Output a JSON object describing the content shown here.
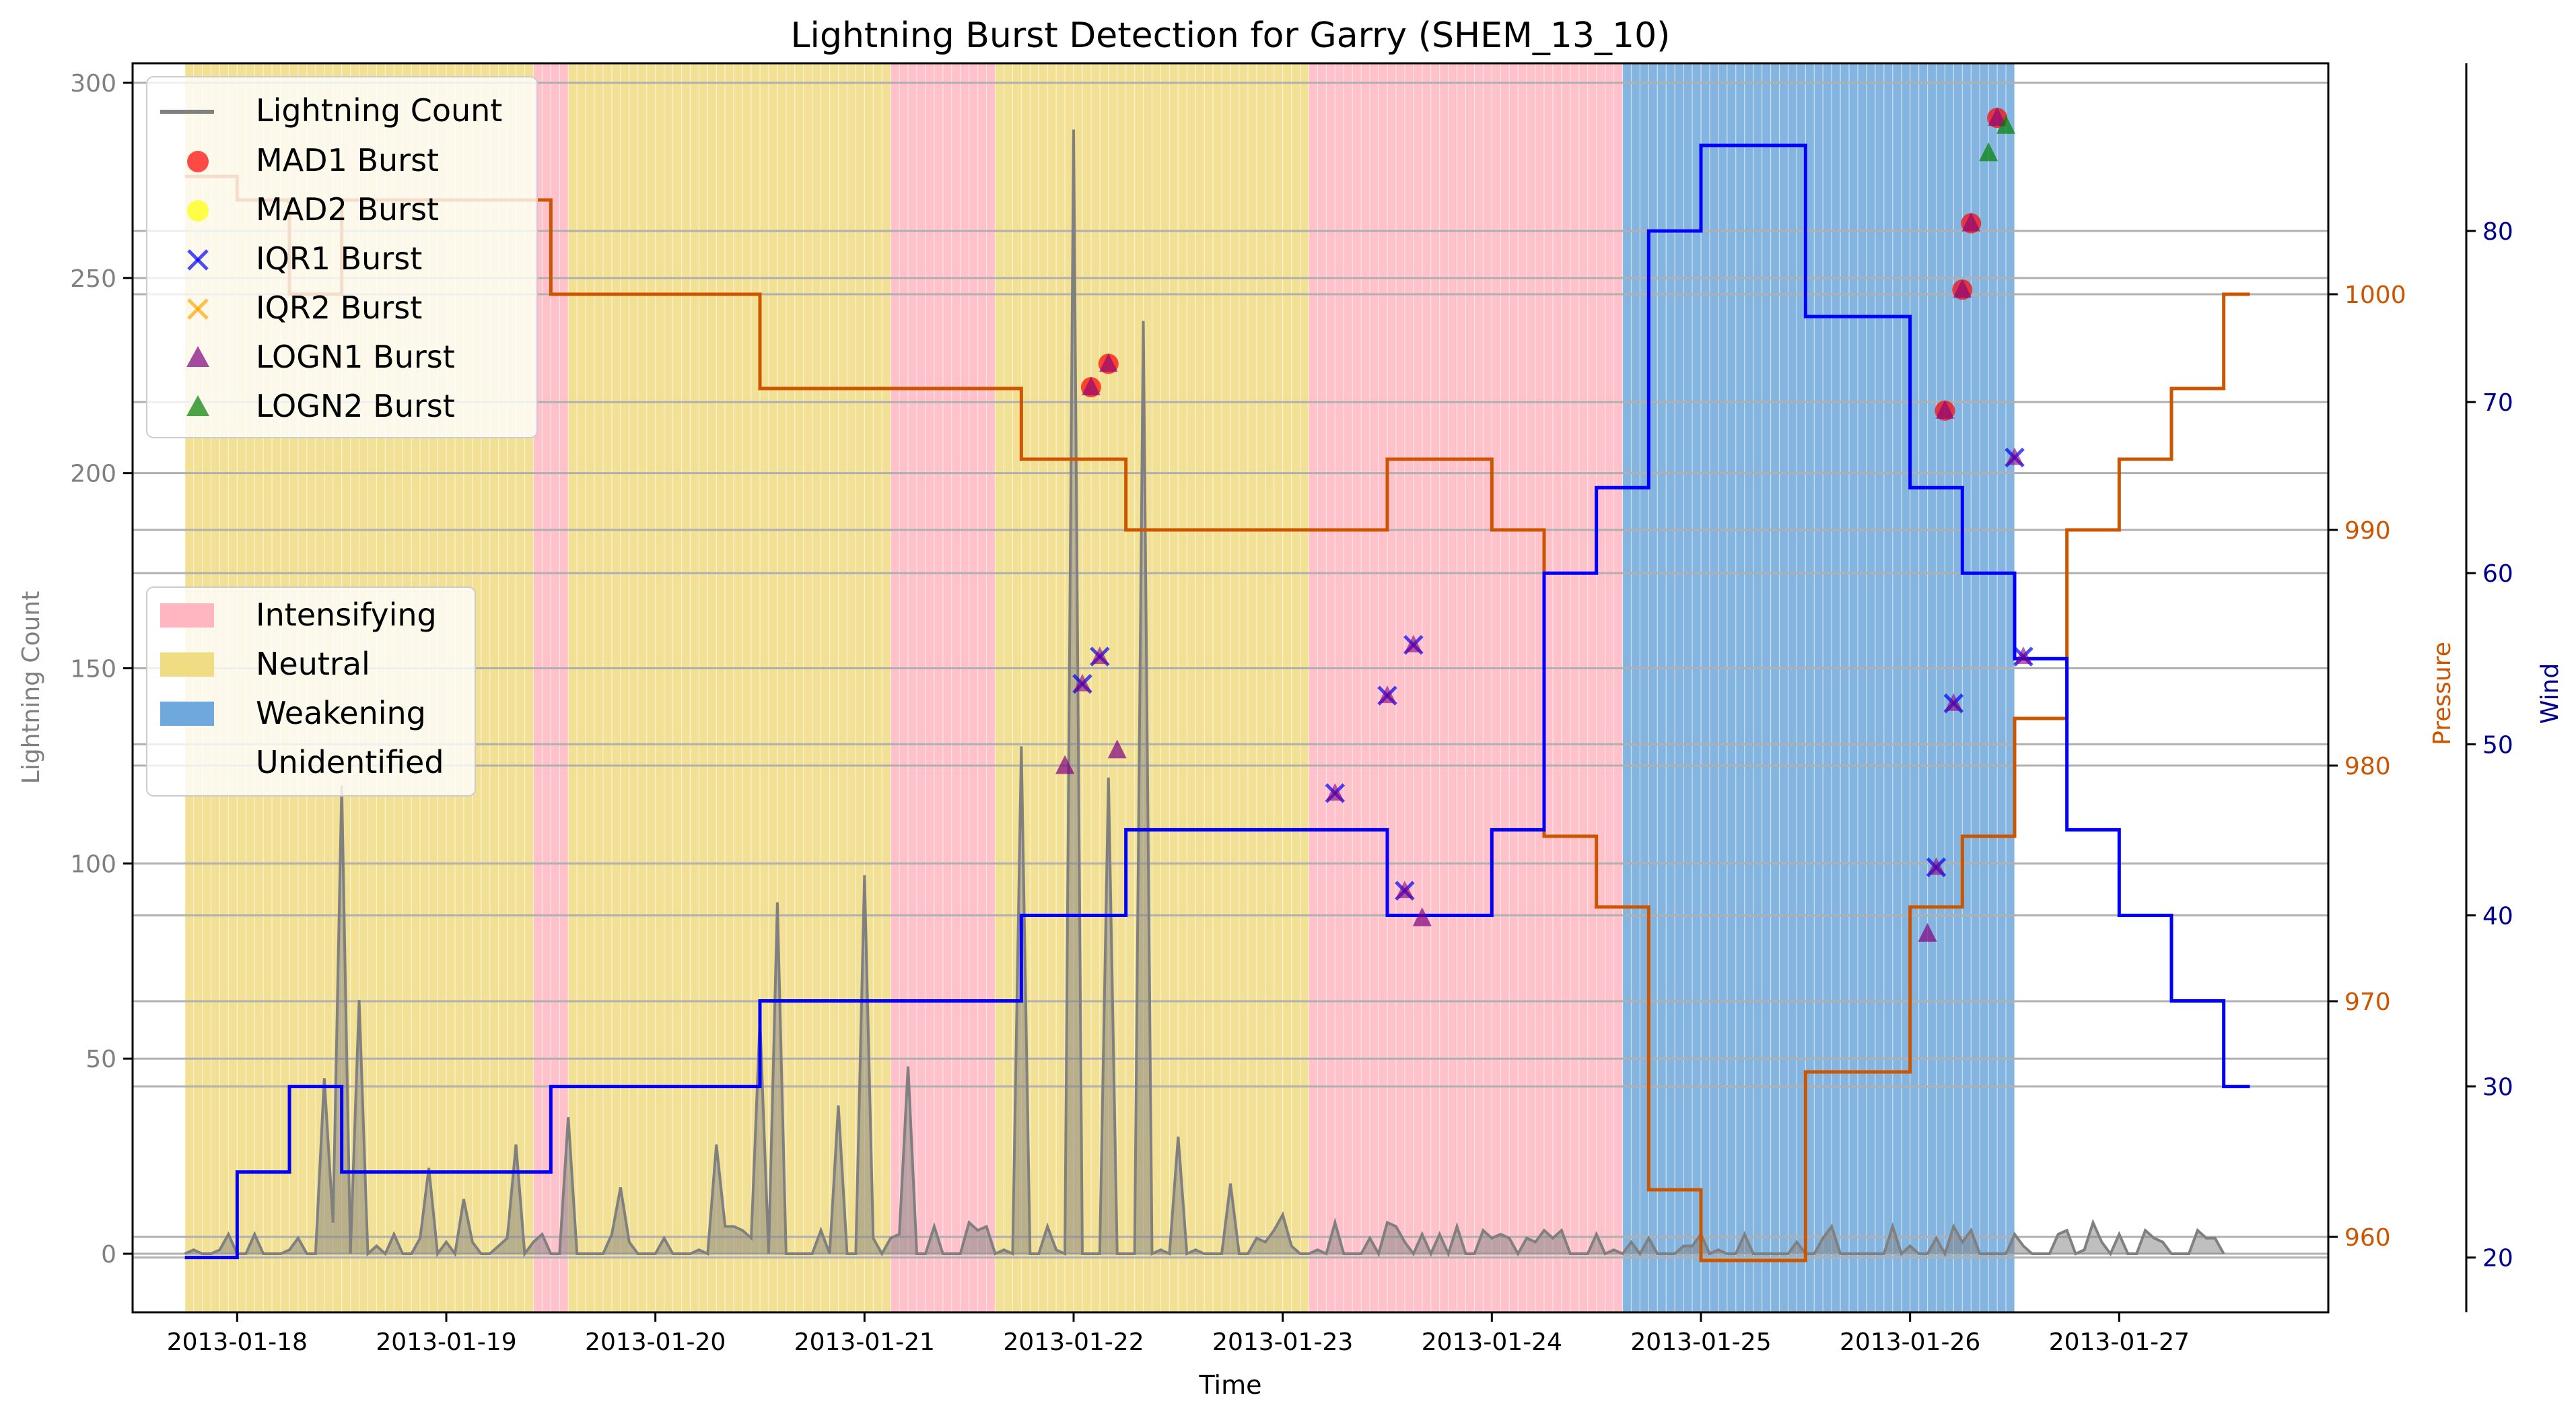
{
  "chart_data": {
    "type": "line",
    "title": "Lightning Burst Detection for Garry (SHEM_13_10)",
    "xlabel": "Time",
    "ylabel": "Lightning Count",
    "ylabel_right1": "Pressure",
    "ylabel_right2": "Wind",
    "xlim": [
      "2013-01-17T12:00",
      "2013-01-28T00:00"
    ],
    "ylim": [
      -15,
      305
    ],
    "ylim_pressure": [
      956.8,
      1009.8
    ],
    "ylim_wind": [
      16.8,
      89.8
    ],
    "x_ticks": [
      "2013-01-18",
      "2013-01-19",
      "2013-01-20",
      "2013-01-21",
      "2013-01-22",
      "2013-01-23",
      "2013-01-24",
      "2013-01-25",
      "2013-01-26",
      "2013-01-27"
    ],
    "y_ticks": [
      0,
      50,
      100,
      150,
      200,
      250,
      300
    ],
    "pressure_ticks": [
      960,
      970,
      980,
      990,
      1000
    ],
    "wind_ticks": [
      20,
      30,
      40,
      50,
      60,
      70,
      80
    ],
    "colors": {
      "lightning": "#808080",
      "pressure": "#cc5500",
      "wind": "#0000ff",
      "intensifying": "#ffb6c1",
      "neutral": "#f0dc82",
      "weakening": "#6fa8dc",
      "grid": "#b0b0b0"
    },
    "legend_top": {
      "position": "top-left",
      "entries": [
        "Lightning Count",
        "MAD1 Burst",
        "MAD2 Burst",
        "IQR1 Burst",
        "IQR2 Burst",
        "LOGN1 Burst",
        "LOGN2 Burst"
      ]
    },
    "legend_mid": {
      "position": "center-left",
      "entries": [
        "Intensifying",
        "Neutral",
        "Weakening",
        "Unidentified"
      ]
    },
    "phases": [
      {
        "start": "2013-01-17T18:00",
        "end": "2013-01-19T10:00",
        "phase": "Neutral"
      },
      {
        "start": "2013-01-19T10:00",
        "end": "2013-01-19T14:00",
        "phase": "Intensifying"
      },
      {
        "start": "2013-01-19T14:00",
        "end": "2013-01-21T03:00",
        "phase": "Neutral"
      },
      {
        "start": "2013-01-21T03:00",
        "end": "2013-01-21T15:00",
        "phase": "Intensifying"
      },
      {
        "start": "2013-01-21T15:00",
        "end": "2013-01-23T03:00",
        "phase": "Neutral"
      },
      {
        "start": "2013-01-23T03:00",
        "end": "2013-01-24T15:00",
        "phase": "Intensifying"
      },
      {
        "start": "2013-01-24T15:00",
        "end": "2013-01-26T12:00",
        "phase": "Weakening"
      }
    ],
    "pressure": [
      {
        "t": "2013-01-17T18:00",
        "v": 1005
      },
      {
        "t": "2013-01-18T00:00",
        "v": 1004
      },
      {
        "t": "2013-01-18T06:00",
        "v": 1000
      },
      {
        "t": "2013-01-18T12:00",
        "v": 1004
      },
      {
        "t": "2013-01-19T12:00",
        "v": 1000
      },
      {
        "t": "2013-01-20T12:00",
        "v": 996
      },
      {
        "t": "2013-01-21T18:00",
        "v": 993
      },
      {
        "t": "2013-01-22T06:00",
        "v": 990
      },
      {
        "t": "2013-01-23T12:00",
        "v": 993
      },
      {
        "t": "2013-01-24T00:00",
        "v": 990
      },
      {
        "t": "2013-01-24T06:00",
        "v": 977
      },
      {
        "t": "2013-01-24T12:00",
        "v": 974
      },
      {
        "t": "2013-01-24T18:00",
        "v": 962
      },
      {
        "t": "2013-01-25T00:00",
        "v": 959
      },
      {
        "t": "2013-01-25T12:00",
        "v": 967
      },
      {
        "t": "2013-01-26T00:00",
        "v": 974
      },
      {
        "t": "2013-01-26T06:00",
        "v": 977
      },
      {
        "t": "2013-01-26T12:00",
        "v": 982
      },
      {
        "t": "2013-01-26T18:00",
        "v": 990
      },
      {
        "t": "2013-01-27T00:00",
        "v": 993
      },
      {
        "t": "2013-01-27T06:00",
        "v": 996
      },
      {
        "t": "2013-01-27T12:00",
        "v": 1000
      }
    ],
    "wind": [
      {
        "t": "2013-01-17T18:00",
        "v": 20
      },
      {
        "t": "2013-01-18T00:00",
        "v": 25
      },
      {
        "t": "2013-01-18T06:00",
        "v": 30
      },
      {
        "t": "2013-01-18T12:00",
        "v": 25
      },
      {
        "t": "2013-01-19T12:00",
        "v": 30
      },
      {
        "t": "2013-01-20T12:00",
        "v": 35
      },
      {
        "t": "2013-01-21T18:00",
        "v": 40
      },
      {
        "t": "2013-01-22T06:00",
        "v": 45
      },
      {
        "t": "2013-01-23T12:00",
        "v": 40
      },
      {
        "t": "2013-01-24T00:00",
        "v": 45
      },
      {
        "t": "2013-01-24T06:00",
        "v": 60
      },
      {
        "t": "2013-01-24T12:00",
        "v": 65
      },
      {
        "t": "2013-01-24T18:00",
        "v": 80
      },
      {
        "t": "2013-01-25T00:00",
        "v": 85
      },
      {
        "t": "2013-01-25T12:00",
        "v": 75
      },
      {
        "t": "2013-01-26T00:00",
        "v": 65
      },
      {
        "t": "2013-01-26T06:00",
        "v": 60
      },
      {
        "t": "2013-01-26T12:00",
        "v": 55
      },
      {
        "t": "2013-01-26T18:00",
        "v": 45
      },
      {
        "t": "2013-01-27T00:00",
        "v": 40
      },
      {
        "t": "2013-01-27T06:00",
        "v": 35
      },
      {
        "t": "2013-01-27T12:00",
        "v": 30
      }
    ],
    "lightning_spikes": [
      {
        "t": "2013-01-18T10:00",
        "v": 45
      },
      {
        "t": "2013-01-18T12:00",
        "v": 120
      },
      {
        "t": "2013-01-18T14:00",
        "v": 65
      },
      {
        "t": "2013-01-18T22:00",
        "v": 22
      },
      {
        "t": "2013-01-19T02:00",
        "v": 14
      },
      {
        "t": "2013-01-19T08:00",
        "v": 28
      },
      {
        "t": "2013-01-19T14:00",
        "v": 35
      },
      {
        "t": "2013-01-19T20:00",
        "v": 17
      },
      {
        "t": "2013-01-20T07:00",
        "v": 28
      },
      {
        "t": "2013-01-20T12:00",
        "v": 60
      },
      {
        "t": "2013-01-20T14:00",
        "v": 90
      },
      {
        "t": "2013-01-20T21:00",
        "v": 38
      },
      {
        "t": "2013-01-21T00:00",
        "v": 97
      },
      {
        "t": "2013-01-21T05:00",
        "v": 48
      },
      {
        "t": "2013-01-21T12:00",
        "v": 8
      },
      {
        "t": "2013-01-21T18:00",
        "v": 130
      },
      {
        "t": "2013-01-22T00:00",
        "v": 288
      },
      {
        "t": "2013-01-22T04:00",
        "v": 122
      },
      {
        "t": "2013-01-22T08:00",
        "v": 239
      },
      {
        "t": "2013-01-22T12:00",
        "v": 30
      },
      {
        "t": "2013-01-22T18:00",
        "v": 18
      },
      {
        "t": "2013-01-23T00:00",
        "v": 10
      },
      {
        "t": "2013-01-23T06:00",
        "v": 8
      },
      {
        "t": "2013-01-23T12:00",
        "v": 8
      }
    ],
    "bursts": [
      {
        "t": "2013-01-21T23:00",
        "v": 125,
        "type": "LOGN1"
      },
      {
        "t": "2013-01-22T01:00",
        "v": 146,
        "type": "IQR1"
      },
      {
        "t": "2013-01-22T02:00",
        "v": 222,
        "type": "MAD1"
      },
      {
        "t": "2013-01-22T03:00",
        "v": 153,
        "type": "IQR1"
      },
      {
        "t": "2013-01-22T04:00",
        "v": 228,
        "type": "MAD1"
      },
      {
        "t": "2013-01-22T05:00",
        "v": 129,
        "type": "LOGN1"
      },
      {
        "t": "2013-01-23T06:00",
        "v": 118,
        "type": "IQR1"
      },
      {
        "t": "2013-01-23T12:00",
        "v": 143,
        "type": "IQR1"
      },
      {
        "t": "2013-01-23T14:00",
        "v": 93,
        "type": "IQR1"
      },
      {
        "t": "2013-01-23T15:00",
        "v": 156,
        "type": "IQR1"
      },
      {
        "t": "2013-01-23T16:00",
        "v": 86,
        "type": "LOGN1"
      },
      {
        "t": "2013-01-26T02:00",
        "v": 82,
        "type": "LOGN1"
      },
      {
        "t": "2013-01-26T03:00",
        "v": 99,
        "type": "IQR1"
      },
      {
        "t": "2013-01-26T04:00",
        "v": 216,
        "type": "MAD1"
      },
      {
        "t": "2013-01-26T05:00",
        "v": 141,
        "type": "IQR1"
      },
      {
        "t": "2013-01-26T06:00",
        "v": 247,
        "type": "MAD1"
      },
      {
        "t": "2013-01-26T07:00",
        "v": 264,
        "type": "MAD1"
      },
      {
        "t": "2013-01-26T09:00",
        "v": 282,
        "type": "LOGN2"
      },
      {
        "t": "2013-01-26T10:00",
        "v": 291,
        "type": "MAD1"
      },
      {
        "t": "2013-01-26T11:00",
        "v": 289,
        "type": "LOGN2"
      },
      {
        "t": "2013-01-26T12:00",
        "v": 204,
        "type": "IQR1"
      },
      {
        "t": "2013-01-26T13:00",
        "v": 153,
        "type": "IQR1"
      }
    ]
  }
}
